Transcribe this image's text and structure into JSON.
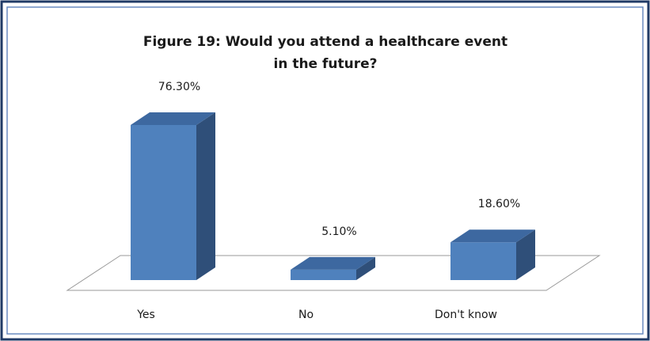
{
  "chart_data": {
    "type": "bar",
    "title": "Figure 19: Would you attend a healthcare event in the future?",
    "title_lines": [
      "Figure 19: Would you attend a healthcare event",
      "in the future?"
    ],
    "categories": [
      "Yes",
      "No",
      "Don't know"
    ],
    "values": [
      76.3,
      5.1,
      18.6
    ],
    "data_labels": [
      "76.30%",
      "5.10%",
      "18.60%"
    ],
    "xlabel": "",
    "ylabel": "",
    "ylim": [
      0,
      100
    ],
    "grid": false,
    "legend": "none",
    "style": "3d-column"
  },
  "colors": {
    "bar_front": "#4f81bd",
    "bar_side": "#2f4f79",
    "bar_top": "#3d68a0",
    "border_outer": "#1f3a66",
    "border_inner": "#6a8cc0",
    "floor_stroke": "#9a9a9a"
  }
}
